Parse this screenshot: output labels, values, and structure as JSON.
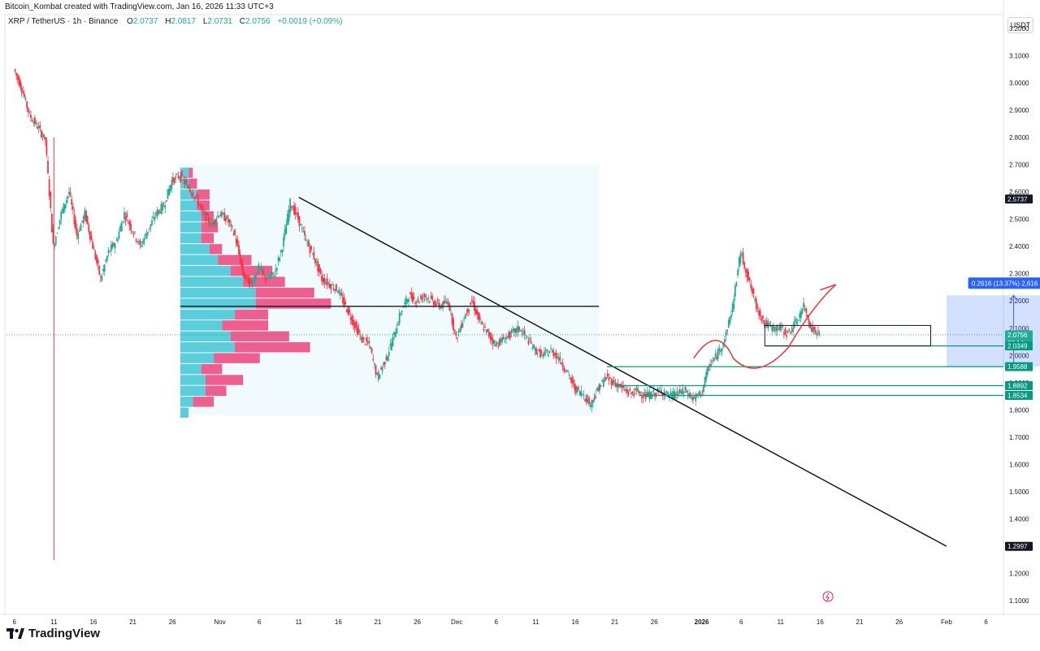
{
  "header": {
    "credit": "Bitcoin_Kombat created with TradingView.com, Jan 16, 2026 11:33 UTC+3",
    "symbol": "XRP / TetherUS · 1h · Binance",
    "ohlc": [
      {
        "label": "O",
        "value": "2.0737"
      },
      {
        "label": "H",
        "value": "2.0817"
      },
      {
        "label": "L",
        "value": "2.0731"
      },
      {
        "label": "C",
        "value": "2.0756"
      },
      {
        "label": "",
        "value": "+0.0019 (+0.09%)"
      }
    ],
    "currency": "USDT"
  },
  "footer": {
    "brand": "TradingView"
  },
  "colors": {
    "up": "#22ab94",
    "down": "#f23645",
    "vp_up": "#5ccedb",
    "vp_down": "#ec5f8f",
    "trendline": "#131722",
    "level": "#089981",
    "ellipse": "#e53935",
    "target": "#2962ff"
  },
  "chart_data": {
    "type": "candlestick",
    "y_range": [
      1.05,
      3.25
    ],
    "y_ticks": [
      "3.2000",
      "3.1000",
      "3.0000",
      "2.9000",
      "2.8000",
      "2.7000",
      "2.6000",
      "2.5000",
      "2.4000",
      "2.3000",
      "2.2000",
      "2.1000",
      "2.0000",
      "1.9000",
      "1.8000",
      "1.7000",
      "1.6000",
      "1.5000",
      "1.4000",
      "1.3000",
      "1.2000",
      "1.1000"
    ],
    "x_ticks": [
      {
        "label": "6",
        "date": "2025-10-06"
      },
      {
        "label": "11",
        "date": "2025-10-11"
      },
      {
        "label": "16",
        "date": "2025-10-16"
      },
      {
        "label": "21",
        "date": "2025-10-21"
      },
      {
        "label": "26",
        "date": "2025-10-26"
      },
      {
        "label": "Nov",
        "date": "2025-11-01"
      },
      {
        "label": "6",
        "date": "2025-11-06"
      },
      {
        "label": "11",
        "date": "2025-11-11"
      },
      {
        "label": "16",
        "date": "2025-11-16"
      },
      {
        "label": "21",
        "date": "2025-11-21"
      },
      {
        "label": "26",
        "date": "2025-11-26"
      },
      {
        "label": "Dec",
        "date": "2025-12-01"
      },
      {
        "label": "6",
        "date": "2025-12-06"
      },
      {
        "label": "11",
        "date": "2025-12-11"
      },
      {
        "label": "16",
        "date": "2025-12-16"
      },
      {
        "label": "21",
        "date": "2025-12-21"
      },
      {
        "label": "26",
        "date": "2025-12-26"
      },
      {
        "label": "2026",
        "date": "2026-01-01"
      },
      {
        "label": "6",
        "date": "2026-01-06"
      },
      {
        "label": "11",
        "date": "2026-01-11"
      },
      {
        "label": "16",
        "date": "2026-01-16"
      },
      {
        "label": "21",
        "date": "2026-01-21"
      },
      {
        "label": "26",
        "date": "2026-01-26"
      },
      {
        "label": "Feb",
        "date": "2026-02-01"
      },
      {
        "label": "6",
        "date": "2026-02-06"
      }
    ],
    "price_path": [
      [
        "2025-10-06",
        3.05
      ],
      [
        "2025-10-07",
        2.98
      ],
      [
        "2025-10-08",
        2.88
      ],
      [
        "2025-10-09",
        2.84
      ],
      [
        "2025-10-10",
        2.79
      ],
      [
        "2025-10-11",
        2.4
      ],
      [
        "2025-10-12",
        2.52
      ],
      [
        "2025-10-13",
        2.6
      ],
      [
        "2025-10-14",
        2.44
      ],
      [
        "2025-10-15",
        2.52
      ],
      [
        "2025-10-16",
        2.4
      ],
      [
        "2025-10-17",
        2.28
      ],
      [
        "2025-10-18",
        2.38
      ],
      [
        "2025-10-19",
        2.42
      ],
      [
        "2025-10-20",
        2.52
      ],
      [
        "2025-10-21",
        2.46
      ],
      [
        "2025-10-22",
        2.4
      ],
      [
        "2025-10-23",
        2.46
      ],
      [
        "2025-10-24",
        2.52
      ],
      [
        "2025-10-25",
        2.55
      ],
      [
        "2025-10-26",
        2.64
      ],
      [
        "2025-10-27",
        2.66
      ],
      [
        "2025-10-28",
        2.62
      ],
      [
        "2025-10-29",
        2.58
      ],
      [
        "2025-10-30",
        2.52
      ],
      [
        "2025-10-31",
        2.48
      ],
      [
        "2025-11-01",
        2.52
      ],
      [
        "2025-11-02",
        2.5
      ],
      [
        "2025-11-03",
        2.44
      ],
      [
        "2025-11-04",
        2.3
      ],
      [
        "2025-11-05",
        2.26
      ],
      [
        "2025-11-06",
        2.32
      ],
      [
        "2025-11-07",
        2.28
      ],
      [
        "2025-11-08",
        2.3
      ],
      [
        "2025-11-09",
        2.4
      ],
      [
        "2025-11-10",
        2.56
      ],
      [
        "2025-11-11",
        2.5
      ],
      [
        "2025-11-12",
        2.42
      ],
      [
        "2025-11-13",
        2.36
      ],
      [
        "2025-11-14",
        2.28
      ],
      [
        "2025-11-15",
        2.26
      ],
      [
        "2025-11-16",
        2.24
      ],
      [
        "2025-11-17",
        2.18
      ],
      [
        "2025-11-18",
        2.12
      ],
      [
        "2025-11-19",
        2.06
      ],
      [
        "2025-11-20",
        2.04
      ],
      [
        "2025-11-21",
        1.92
      ],
      [
        "2025-11-22",
        1.98
      ],
      [
        "2025-11-23",
        2.06
      ],
      [
        "2025-11-24",
        2.16
      ],
      [
        "2025-11-25",
        2.22
      ],
      [
        "2025-11-26",
        2.2
      ],
      [
        "2025-11-27",
        2.22
      ],
      [
        "2025-11-28",
        2.2
      ],
      [
        "2025-11-29",
        2.18
      ],
      [
        "2025-11-30",
        2.2
      ],
      [
        "2025-12-01",
        2.06
      ],
      [
        "2025-12-02",
        2.14
      ],
      [
        "2025-12-03",
        2.2
      ],
      [
        "2025-12-04",
        2.12
      ],
      [
        "2025-12-05",
        2.08
      ],
      [
        "2025-12-06",
        2.04
      ],
      [
        "2025-12-07",
        2.06
      ],
      [
        "2025-12-08",
        2.08
      ],
      [
        "2025-12-09",
        2.1
      ],
      [
        "2025-12-10",
        2.06
      ],
      [
        "2025-12-11",
        2.02
      ],
      [
        "2025-12-12",
        2.0
      ],
      [
        "2025-12-13",
        2.02
      ],
      [
        "2025-12-14",
        1.99
      ],
      [
        "2025-12-15",
        1.94
      ],
      [
        "2025-12-16",
        1.88
      ],
      [
        "2025-12-17",
        1.86
      ],
      [
        "2025-12-18",
        1.82
      ],
      [
        "2025-12-19",
        1.88
      ],
      [
        "2025-12-20",
        1.92
      ],
      [
        "2025-12-21",
        1.9
      ],
      [
        "2025-12-22",
        1.88
      ],
      [
        "2025-12-23",
        1.86
      ],
      [
        "2025-12-24",
        1.87
      ],
      [
        "2025-12-25",
        1.85
      ],
      [
        "2025-12-26",
        1.86
      ],
      [
        "2025-12-27",
        1.87
      ],
      [
        "2025-12-28",
        1.85
      ],
      [
        "2025-12-29",
        1.86
      ],
      [
        "2025-12-30",
        1.87
      ],
      [
        "2025-12-31",
        1.84
      ],
      [
        "2026-01-01",
        1.86
      ],
      [
        "2026-01-02",
        1.96
      ],
      [
        "2026-01-03",
        2.0
      ],
      [
        "2026-01-04",
        2.06
      ],
      [
        "2026-01-05",
        2.18
      ],
      [
        "2026-01-06",
        2.38
      ],
      [
        "2026-01-07",
        2.28
      ],
      [
        "2026-01-08",
        2.18
      ],
      [
        "2026-01-09",
        2.12
      ],
      [
        "2026-01-10",
        2.1
      ],
      [
        "2026-01-11",
        2.1
      ],
      [
        "2026-01-12",
        2.08
      ],
      [
        "2026-01-13",
        2.12
      ],
      [
        "2026-01-14",
        2.18
      ],
      [
        "2026-01-15",
        2.1
      ],
      [
        "2026-01-16",
        2.0756
      ]
    ],
    "volume_profile": {
      "range": [
        "2025-10-27",
        "2025-12-19"
      ],
      "price_range": [
        1.78,
        2.7
      ],
      "poc": 2.18,
      "rows": [
        {
          "price": 1.79,
          "up": 0.02,
          "down": 0.0
        },
        {
          "price": 1.83,
          "up": 0.03,
          "down": 0.05
        },
        {
          "price": 1.87,
          "up": 0.06,
          "down": 0.05
        },
        {
          "price": 1.91,
          "up": 0.06,
          "down": 0.09
        },
        {
          "price": 1.95,
          "up": 0.05,
          "down": 0.05
        },
        {
          "price": 1.99,
          "up": 0.08,
          "down": 0.11
        },
        {
          "price": 2.03,
          "up": 0.13,
          "down": 0.18
        },
        {
          "price": 2.07,
          "up": 0.12,
          "down": 0.14
        },
        {
          "price": 2.11,
          "up": 0.1,
          "down": 0.11
        },
        {
          "price": 2.15,
          "up": 0.13,
          "down": 0.08
        },
        {
          "price": 2.19,
          "up": 0.18,
          "down": 0.18
        },
        {
          "price": 2.23,
          "up": 0.18,
          "down": 0.14
        },
        {
          "price": 2.27,
          "up": 0.15,
          "down": 0.1
        },
        {
          "price": 2.31,
          "up": 0.12,
          "down": 0.1
        },
        {
          "price": 2.35,
          "up": 0.09,
          "down": 0.08
        },
        {
          "price": 2.39,
          "up": 0.07,
          "down": 0.03
        },
        {
          "price": 2.43,
          "up": 0.05,
          "down": 0.03
        },
        {
          "price": 2.47,
          "up": 0.05,
          "down": 0.04
        },
        {
          "price": 2.51,
          "up": 0.05,
          "down": 0.03
        },
        {
          "price": 2.55,
          "up": 0.04,
          "down": 0.03
        },
        {
          "price": 2.59,
          "up": 0.04,
          "down": 0.03
        },
        {
          "price": 2.63,
          "up": 0.02,
          "down": 0.02
        },
        {
          "price": 2.67,
          "up": 0.02,
          "down": 0.01
        }
      ]
    },
    "trendlines": [
      {
        "name": "descending-trendline",
        "from": [
          "2025-11-11",
          2.58
        ],
        "to": [
          "2026-02-01",
          1.3
        ]
      },
      {
        "name": "poc-line",
        "from": [
          "2025-10-27",
          2.18
        ],
        "to": [
          "2025-12-19",
          2.18
        ]
      }
    ],
    "horizontal_levels": [
      {
        "name": "1.9588",
        "price": 1.9588,
        "from": "2025-12-20"
      },
      {
        "name": "1.8892",
        "price": 1.8892,
        "from": "2025-12-21"
      },
      {
        "name": "1.8534",
        "price": 1.8534,
        "from": "2025-12-24"
      },
      {
        "name": "2.0349",
        "price": 2.0349,
        "from": "2026-01-09"
      }
    ],
    "consolidation_box": {
      "from": "2026-01-09",
      "to": "2026-01-30",
      "top": 2.11,
      "bottom": 2.0349
    },
    "projection": {
      "from": "2026-02-01",
      "to": "2026-02-18",
      "bottom": 1.9588,
      "top": 2.2204,
      "label": "0.2616 (13.37%) 2,616"
    },
    "price_axis_labels": [
      {
        "value": "2.5737",
        "bg": "#131722"
      },
      {
        "value": "2.0756",
        "bg": "#22ab94",
        "sub": "26:14"
      },
      {
        "value": "2.0349",
        "bg": "#089981"
      },
      {
        "value": "1.9588",
        "bg": "#089981"
      },
      {
        "value": "1.8892",
        "bg": "#089981"
      },
      {
        "value": "1.8534",
        "bg": "#089981"
      },
      {
        "value": "1.2997",
        "bg": "#131722"
      }
    ],
    "last_price": 2.0756,
    "flash_date": "2026-01-17"
  }
}
